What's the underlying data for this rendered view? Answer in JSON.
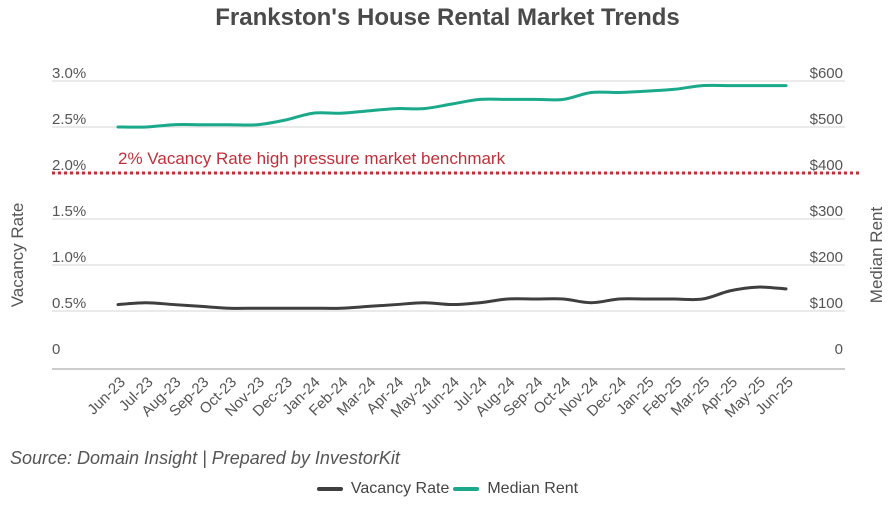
{
  "colors": {
    "vacancy": "#3f3f3f",
    "rent": "#1aa98a",
    "benchmark": "#c0303a",
    "grid": "#d6d6d6",
    "axis": "#555555"
  },
  "chart_data": {
    "type": "line",
    "title": "Frankston's House Rental Market Trends",
    "source": "Source: Domain Insight | Prepared by InvestorKit",
    "y_left_label": "Vacancy Rate",
    "y_right_label": "Median Rent",
    "y_left_ticks": [
      "0",
      "0.5%",
      "1.0%",
      "1.5%",
      "2.0%",
      "2.5%",
      "3.0%"
    ],
    "y_right_ticks": [
      "0",
      "$100",
      "$200",
      "$300",
      "$400",
      "$500",
      "$600"
    ],
    "y_left_range": [
      0,
      3.0
    ],
    "y_right_range": [
      0,
      600
    ],
    "categories": [
      "Jun-23",
      "Jul-23",
      "Aug-23",
      "Sep-23",
      "Oct-23",
      "Nov-23",
      "Dec-23",
      "Jan-24",
      "Feb-24",
      "Mar-24",
      "Apr-24",
      "May-24",
      "Jun-24",
      "Jul-24",
      "Aug-24",
      "Sep-24",
      "Oct-24",
      "Nov-24",
      "Dec-24",
      "Jan-25",
      "Feb-25",
      "Mar-25",
      "Apr-25",
      "May-25",
      "Jun-25"
    ],
    "x_tick_labels": [
      "Jun-23",
      "Jul-23",
      "Aug-23",
      "Sep-23",
      "Oct-23",
      "Nov-23",
      "Dec-23",
      "Jan-24",
      "Feb-24",
      "Mar-24",
      "Apr-24",
      "May-24",
      "Jun-24",
      "Jul-24",
      "Aug-24",
      "Sep-24",
      "Oct-24",
      "Nov-24",
      "Dec-24",
      "Jan-25",
      "Feb-25",
      "Mar-25",
      "Apr-25",
      "May-25",
      "Jun-25"
    ],
    "series": [
      {
        "name": "Vacancy Rate",
        "axis": "left",
        "values": [
          0.57,
          0.59,
          0.57,
          0.55,
          0.53,
          0.53,
          0.53,
          0.53,
          0.53,
          0.55,
          0.57,
          0.59,
          0.57,
          0.59,
          0.63,
          0.63,
          0.63,
          0.59,
          0.63,
          0.63,
          0.63,
          0.63,
          0.72,
          0.76,
          0.74
        ]
      },
      {
        "name": "Median Rent",
        "axis": "right",
        "values": [
          500,
          500,
          505,
          505,
          505,
          505,
          515,
          530,
          530,
          535,
          540,
          540,
          550,
          560,
          560,
          560,
          560,
          575,
          575,
          578,
          582,
          590,
          590,
          590,
          590
        ]
      }
    ],
    "benchmark": {
      "value": 2.0,
      "label": "2% Vacancy Rate high pressure market benchmark"
    }
  },
  "legend": [
    {
      "label": "Vacancy Rate",
      "color_key": "vacancy"
    },
    {
      "label": "Median Rent",
      "color_key": "rent"
    }
  ]
}
